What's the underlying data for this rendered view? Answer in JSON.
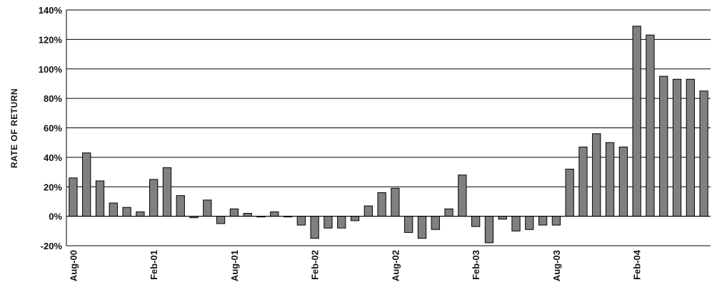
{
  "chart_data": {
    "type": "bar",
    "ylabel": "RATE OF RETURN",
    "xlabel": "",
    "title": "",
    "ylim": [
      -20,
      140
    ],
    "y_ticks": [
      "-20%",
      "0%",
      "20%",
      "40%",
      "60%",
      "80%",
      "100%",
      "120%",
      "140%"
    ],
    "x_tick_labels": [
      {
        "label": "Aug-00",
        "index": 0
      },
      {
        "label": "Feb-01",
        "index": 6
      },
      {
        "label": "Aug-01",
        "index": 12
      },
      {
        "label": "Feb-02",
        "index": 18
      },
      {
        "label": "Aug-02",
        "index": 24
      },
      {
        "label": "Feb-03",
        "index": 30
      },
      {
        "label": "Aug-03",
        "index": 36
      },
      {
        "label": "Feb-04",
        "index": 42
      }
    ],
    "categories": [
      "Aug-00",
      "Sep-00",
      "Oct-00",
      "Nov-00",
      "Dec-00",
      "Jan-01",
      "Feb-01",
      "Mar-01",
      "Apr-01",
      "May-01",
      "Jun-01",
      "Jul-01",
      "Aug-01",
      "Sep-01",
      "Oct-01",
      "Nov-01",
      "Dec-01",
      "Jan-02",
      "Feb-02",
      "Mar-02",
      "Apr-02",
      "May-02",
      "Jun-02",
      "Jul-02",
      "Aug-02",
      "Sep-02",
      "Oct-02",
      "Nov-02",
      "Dec-02",
      "Jan-03",
      "Feb-03",
      "Mar-03",
      "Apr-03",
      "May-03",
      "Jun-03",
      "Jul-03",
      "Aug-03",
      "Sep-03",
      "Oct-03",
      "Nov-03",
      "Dec-03",
      "Jan-04",
      "Feb-04",
      "Mar-04",
      "Apr-04",
      "May-04",
      "Jun-04",
      "Jul-04"
    ],
    "values": [
      26,
      43,
      24,
      9,
      6,
      3,
      25,
      33,
      14,
      -1,
      11,
      -5,
      5,
      2,
      0,
      3,
      0,
      -6,
      -15,
      -8,
      -8,
      -3,
      7,
      16,
      19,
      -11,
      -15,
      -9,
      5,
      28,
      -7,
      -18,
      -2,
      -10,
      -9,
      -6,
      -6,
      32,
      47,
      56,
      50,
      47,
      129,
      123,
      95,
      93,
      93,
      85
    ],
    "grid": "horizontal",
    "legend": "none",
    "colors": {
      "bar_fill": "#808080",
      "bar_stroke": "#000000",
      "grid": "#000000"
    }
  }
}
